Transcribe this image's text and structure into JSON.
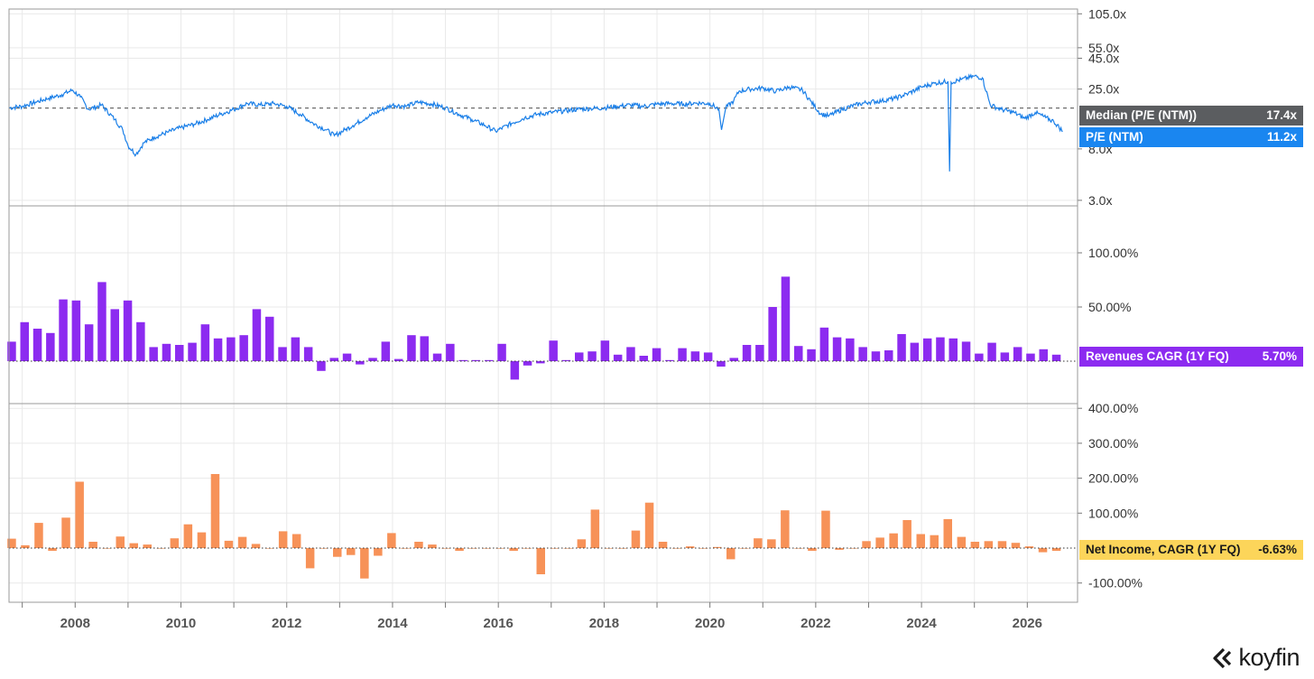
{
  "chart_data": [
    {
      "type": "line",
      "y_scale": "log",
      "y_ticks": [
        "105.0x",
        "55.0x",
        "45.0x",
        "25.0x",
        "8.0x",
        "3.0x"
      ],
      "series": [
        {
          "name": "P/E (NTM)",
          "color": "#1a7fe8",
          "last_label": "11.2x"
        }
      ],
      "reference_line": {
        "name": "Median (P/E (NTM))",
        "value_label": "17.4x",
        "value": 17.4
      },
      "points": [
        [
          2006.75,
          17.5
        ],
        [
          2007.0,
          18.0
        ],
        [
          2007.25,
          19.5
        ],
        [
          2007.5,
          21.0
        ],
        [
          2007.75,
          22.5
        ],
        [
          2007.95,
          24.5
        ],
        [
          2008.1,
          21.5
        ],
        [
          2008.25,
          17.0
        ],
        [
          2008.5,
          18.5
        ],
        [
          2008.75,
          14.0
        ],
        [
          2008.9,
          11.5
        ],
        [
          2009.0,
          8.5
        ],
        [
          2009.15,
          7.2
        ],
        [
          2009.3,
          9.0
        ],
        [
          2009.5,
          10.0
        ],
        [
          2009.75,
          11.0
        ],
        [
          2010.0,
          12.0
        ],
        [
          2010.25,
          12.8
        ],
        [
          2010.5,
          14.0
        ],
        [
          2010.75,
          15.5
        ],
        [
          2011.0,
          17.0
        ],
        [
          2011.25,
          19.0
        ],
        [
          2011.5,
          18.5
        ],
        [
          2011.75,
          19.0
        ],
        [
          2012.0,
          18.0
        ],
        [
          2012.25,
          15.5
        ],
        [
          2012.5,
          13.0
        ],
        [
          2012.75,
          11.5
        ],
        [
          2012.9,
          10.3
        ],
        [
          2013.1,
          11.5
        ],
        [
          2013.25,
          12.5
        ],
        [
          2013.5,
          14.5
        ],
        [
          2013.75,
          16.5
        ],
        [
          2014.0,
          18.5
        ],
        [
          2014.25,
          18.0
        ],
        [
          2014.5,
          19.5
        ],
        [
          2014.75,
          18.8
        ],
        [
          2015.0,
          17.5
        ],
        [
          2015.25,
          15.5
        ],
        [
          2015.5,
          14.0
        ],
        [
          2015.75,
          12.5
        ],
        [
          2015.95,
          11.2
        ],
        [
          2016.25,
          13.0
        ],
        [
          2016.5,
          14.5
        ],
        [
          2016.75,
          15.5
        ],
        [
          2017.0,
          16.0
        ],
        [
          2017.25,
          16.5
        ],
        [
          2017.5,
          17.0
        ],
        [
          2017.75,
          17.3
        ],
        [
          2018.0,
          17.5
        ],
        [
          2018.25,
          18.0
        ],
        [
          2018.5,
          18.5
        ],
        [
          2018.75,
          18.0
        ],
        [
          2019.0,
          18.8
        ],
        [
          2019.25,
          19.0
        ],
        [
          2019.5,
          18.8
        ],
        [
          2019.75,
          19.2
        ],
        [
          2020.0,
          19.0
        ],
        [
          2020.17,
          17.0
        ],
        [
          2020.22,
          11.5
        ],
        [
          2020.3,
          17.5
        ],
        [
          2020.45,
          20.0
        ],
        [
          2020.55,
          24.0
        ],
        [
          2020.75,
          25.0
        ],
        [
          2021.0,
          25.5
        ],
        [
          2021.25,
          24.0
        ],
        [
          2021.5,
          26.0
        ],
        [
          2021.75,
          24.5
        ],
        [
          2021.9,
          20.0
        ],
        [
          2022.1,
          15.5
        ],
        [
          2022.25,
          15.0
        ],
        [
          2022.5,
          17.0
        ],
        [
          2022.75,
          18.5
        ],
        [
          2023.0,
          19.5
        ],
        [
          2023.25,
          20.0
        ],
        [
          2023.5,
          21.0
        ],
        [
          2023.75,
          23.0
        ],
        [
          2024.0,
          26.0
        ],
        [
          2024.25,
          28.0
        ],
        [
          2024.5,
          29.0
        ],
        [
          2024.53,
          5.2
        ],
        [
          2024.56,
          28.5
        ],
        [
          2024.75,
          30.0
        ],
        [
          2025.0,
          32.0
        ],
        [
          2025.15,
          31.0
        ],
        [
          2025.3,
          18.5
        ],
        [
          2025.5,
          17.0
        ],
        [
          2025.75,
          16.0
        ],
        [
          2025.95,
          14.3
        ],
        [
          2026.15,
          16.0
        ],
        [
          2026.35,
          14.5
        ],
        [
          2026.5,
          13.5
        ],
        [
          2026.67,
          11.2
        ]
      ]
    },
    {
      "type": "bar",
      "y_ticks": [
        "100.00%",
        "50.00%"
      ],
      "series": [
        {
          "name": "Revenues CAGR (1Y FQ)",
          "color": "#8c2bf0",
          "last_label": "5.70%"
        }
      ],
      "values": [
        18,
        36,
        30,
        26,
        57,
        56,
        34,
        73,
        48,
        56,
        36,
        13,
        16,
        15,
        17,
        34,
        21,
        22,
        24,
        48,
        41,
        13,
        22,
        13,
        -9,
        3,
        7,
        -3,
        3,
        18,
        2,
        24,
        23,
        7,
        16,
        1,
        1,
        1,
        16,
        -17,
        -4,
        -2,
        19,
        1,
        8,
        9,
        19,
        6,
        13,
        5,
        12,
        1,
        12,
        9,
        8,
        -5,
        3,
        15,
        15,
        50,
        78,
        14,
        11,
        31,
        22,
        21,
        13,
        9,
        10,
        25,
        17,
        21,
        22,
        21,
        18,
        7,
        17,
        8,
        13,
        7,
        11,
        6
      ],
      "zero_label": "0"
    },
    {
      "type": "bar",
      "y_ticks": [
        "400.00%",
        "300.00%",
        "200.00%",
        "100.00%",
        "-100.00%"
      ],
      "series": [
        {
          "name": "Net Income, CAGR (1Y FQ)",
          "color": "#f79258",
          "last_label": "-6.63%"
        }
      ],
      "values": [
        27,
        8,
        72,
        -8,
        87,
        190,
        18,
        0,
        33,
        14,
        10,
        0,
        28,
        68,
        45,
        212,
        21,
        32,
        12,
        0,
        48,
        40,
        -58,
        0,
        -25,
        -20,
        -87,
        -22,
        43,
        0,
        18,
        10,
        0,
        -8,
        0,
        0,
        0,
        -8,
        0,
        -75,
        0,
        0,
        25,
        110,
        0,
        0,
        50,
        130,
        18,
        0,
        5,
        0,
        3,
        -32,
        0,
        28,
        25,
        108,
        0,
        -8,
        107,
        -5,
        0,
        20,
        30,
        42,
        80,
        40,
        37,
        83,
        32,
        18,
        20,
        20,
        15,
        5,
        -12,
        -8
      ]
    }
  ],
  "x_axis": {
    "labels": [
      "2008",
      "2010",
      "2012",
      "2014",
      "2016",
      "2018",
      "2020",
      "2022",
      "2024",
      "2026"
    ]
  },
  "branding": {
    "logo_text": "koyfin"
  }
}
